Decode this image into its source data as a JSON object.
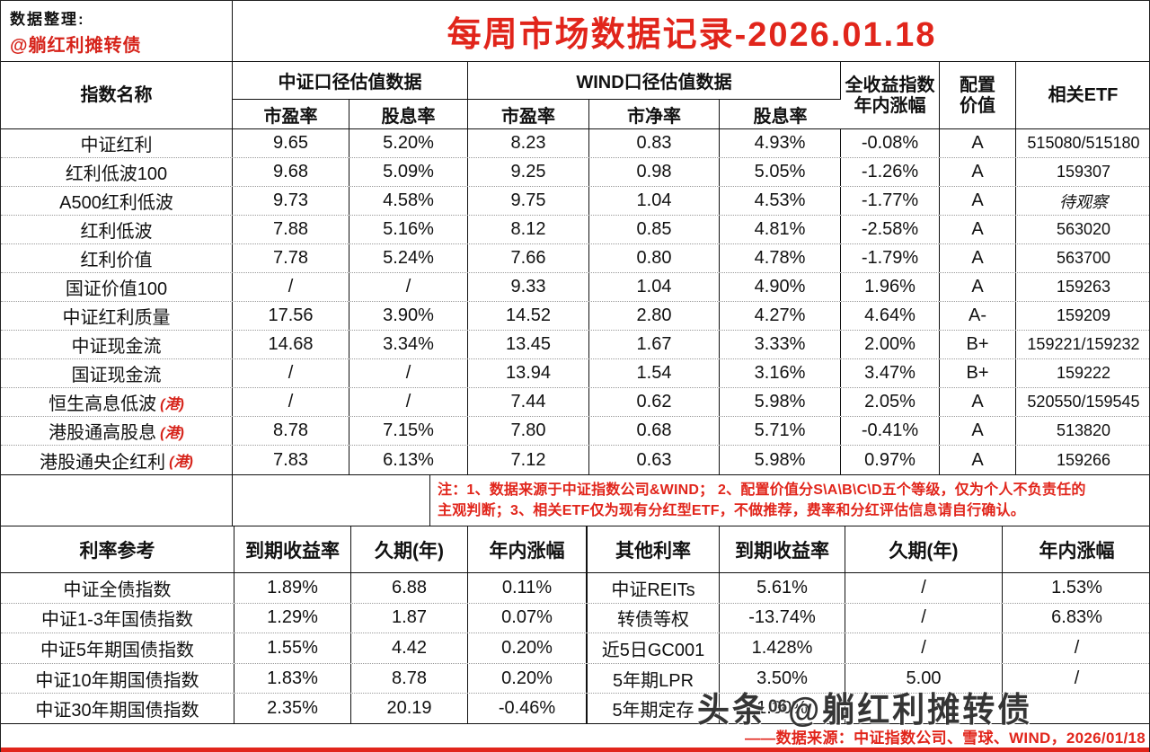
{
  "meta": {
    "curator_label": "数据整理:",
    "curator_handle": "@躺红利摊转债",
    "title": "每周市场数据记录-2026.01.18"
  },
  "valuation_table": {
    "header": {
      "index_name": "指数名称",
      "group_csi": "中证口径估值数据",
      "group_wind": "WIND口径估值数据",
      "csi_pe": "市盈率",
      "csi_dy": "股息率",
      "wind_pe": "市盈率",
      "wind_pb": "市净率",
      "wind_dy": "股息率",
      "total_return_line1": "全收益指数",
      "total_return_line2": "年内涨幅",
      "alloc_line1": "配置",
      "alloc_line2": "价值",
      "etf": "相关ETF"
    },
    "rows": [
      {
        "name": "中证红利",
        "tag": "",
        "csi_pe": "9.65",
        "csi_dy": "5.20%",
        "wind_pe": "8.23",
        "wind_pb": "0.83",
        "wind_dy": "4.93%",
        "ytd": "-0.08%",
        "grade": "A",
        "etf": "515080/515180",
        "etf_italic": false
      },
      {
        "name": "红利低波100",
        "tag": "",
        "csi_pe": "9.68",
        "csi_dy": "5.09%",
        "wind_pe": "9.25",
        "wind_pb": "0.98",
        "wind_dy": "5.05%",
        "ytd": "-1.26%",
        "grade": "A",
        "etf": "159307",
        "etf_italic": false
      },
      {
        "name": "A500红利低波",
        "tag": "",
        "csi_pe": "9.73",
        "csi_dy": "4.58%",
        "wind_pe": "9.75",
        "wind_pb": "1.04",
        "wind_dy": "4.53%",
        "ytd": "-1.77%",
        "grade": "A",
        "etf": "待观察",
        "etf_italic": true
      },
      {
        "name": "红利低波",
        "tag": "",
        "csi_pe": "7.88",
        "csi_dy": "5.16%",
        "wind_pe": "8.12",
        "wind_pb": "0.85",
        "wind_dy": "4.81%",
        "ytd": "-2.58%",
        "grade": "A",
        "etf": "563020",
        "etf_italic": false
      },
      {
        "name": "红利价值",
        "tag": "",
        "csi_pe": "7.78",
        "csi_dy": "5.24%",
        "wind_pe": "7.66",
        "wind_pb": "0.80",
        "wind_dy": "4.78%",
        "ytd": "-1.79%",
        "grade": "A",
        "etf": "563700",
        "etf_italic": false
      },
      {
        "name": "国证价值100",
        "tag": "",
        "csi_pe": "/",
        "csi_dy": "/",
        "wind_pe": "9.33",
        "wind_pb": "1.04",
        "wind_dy": "4.90%",
        "ytd": "1.96%",
        "grade": "A",
        "etf": "159263",
        "etf_italic": false
      },
      {
        "name": "中证红利质量",
        "tag": "",
        "csi_pe": "17.56",
        "csi_dy": "3.90%",
        "wind_pe": "14.52",
        "wind_pb": "2.80",
        "wind_dy": "4.27%",
        "ytd": "4.64%",
        "grade": "A-",
        "etf": "159209",
        "etf_italic": false
      },
      {
        "name": "中证现金流",
        "tag": "",
        "csi_pe": "14.68",
        "csi_dy": "3.34%",
        "wind_pe": "13.45",
        "wind_pb": "1.67",
        "wind_dy": "3.33%",
        "ytd": "2.00%",
        "grade": "B+",
        "etf": "159221/159232",
        "etf_italic": false
      },
      {
        "name": "国证现金流",
        "tag": "",
        "csi_pe": "/",
        "csi_dy": "/",
        "wind_pe": "13.94",
        "wind_pb": "1.54",
        "wind_dy": "3.16%",
        "ytd": "3.47%",
        "grade": "B+",
        "etf": "159222",
        "etf_italic": false
      },
      {
        "name": "恒生高息低波",
        "tag": "(港)",
        "csi_pe": "/",
        "csi_dy": "/",
        "wind_pe": "7.44",
        "wind_pb": "0.62",
        "wind_dy": "5.98%",
        "ytd": "2.05%",
        "grade": "A",
        "etf": "520550/159545",
        "etf_italic": false
      },
      {
        "name": "港股通高股息",
        "tag": "(港)",
        "csi_pe": "8.78",
        "csi_dy": "7.15%",
        "wind_pe": "7.80",
        "wind_pb": "0.68",
        "wind_dy": "5.71%",
        "ytd": "-0.41%",
        "grade": "A",
        "etf": "513820",
        "etf_italic": false
      },
      {
        "name": "港股通央企红利",
        "tag": "(港)",
        "csi_pe": "7.83",
        "csi_dy": "6.13%",
        "wind_pe": "7.12",
        "wind_pb": "0.63",
        "wind_dy": "5.98%",
        "ytd": "0.97%",
        "grade": "A",
        "etf": "159266",
        "etf_italic": false
      }
    ]
  },
  "note": {
    "line1": "注：1、数据来源于中证指数公司&WIND； 2、配置价值分S\\A\\B\\C\\D五个等级，仅为个人不负责任的",
    "line2": "主观判断；3、相关ETF仅为现有分红型ETF，不做推荐，费率和分红评估信息请自行确认。"
  },
  "rates_table": {
    "left_header": {
      "name": "利率参考",
      "ytm": "到期收益率",
      "duration": "久期(年)",
      "ytd": "年内涨幅"
    },
    "right_header": {
      "name": "其他利率",
      "ytm": "到期收益率",
      "duration": "久期(年)",
      "ytd": "年内涨幅"
    },
    "left_rows": [
      {
        "name": "中证全债指数",
        "ytm": "1.89%",
        "duration": "6.88",
        "ytd": "0.11%"
      },
      {
        "name": "中证1-3年国债指数",
        "ytm": "1.29%",
        "duration": "1.87",
        "ytd": "0.07%"
      },
      {
        "name": "中证5年期国债指数",
        "ytm": "1.55%",
        "duration": "4.42",
        "ytd": "0.20%"
      },
      {
        "name": "中证10年期国债指数",
        "ytm": "1.83%",
        "duration": "8.78",
        "ytd": "0.20%"
      },
      {
        "name": "中证30年期国债指数",
        "ytm": "2.35%",
        "duration": "20.19",
        "ytd": "-0.46%"
      }
    ],
    "right_rows": [
      {
        "name": "中证REITs",
        "ytm": "5.61%",
        "duration": "/",
        "ytd": "1.53%"
      },
      {
        "name": "转债等权",
        "ytm": "-13.74%",
        "duration": "/",
        "ytd": "6.83%"
      },
      {
        "name": "近5日GC001",
        "ytm": "1.428%",
        "duration": "/",
        "ytd": "/"
      },
      {
        "name": "5年期LPR",
        "ytm": "3.50%",
        "duration": "5.00",
        "ytd": "/"
      },
      {
        "name": "5年期定存",
        "ytm": "1.30%",
        "duration": "",
        "ytd": ""
      }
    ]
  },
  "footer": {
    "source": "——数据来源：中证指数公司、雪球、WIND，2026/01/18"
  },
  "watermark": {
    "prefix": "头条",
    "digits": "06",
    "handle": "@躺红利摊转债"
  },
  "colors": {
    "accent_red": "#e1251b",
    "text_black": "#111111"
  }
}
